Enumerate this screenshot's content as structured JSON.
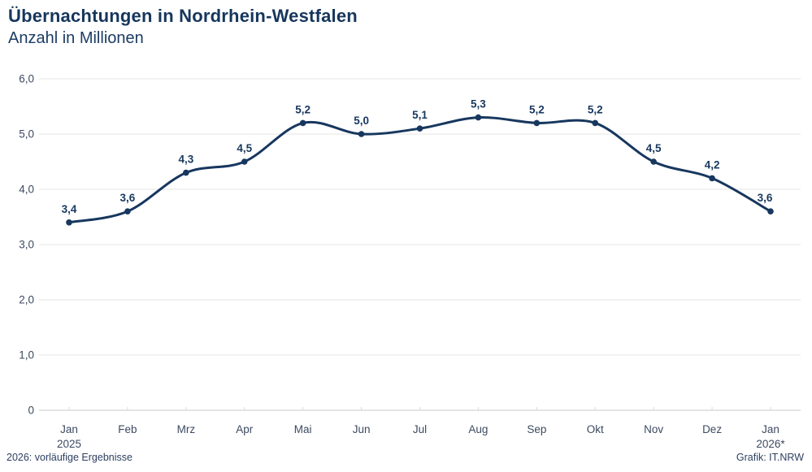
{
  "header": {
    "title": "Übernachtungen in Nordrhein-Westfalen",
    "subtitle": "Anzahl in Millionen"
  },
  "footer": {
    "note_left": "2026: vorläufige Ergebnisse",
    "credit_right": "Grafik: IT.NRW"
  },
  "colors": {
    "line": "#17375e",
    "point_label": "#17375e",
    "axis_label": "#3c4a61",
    "gridline": "#e9e9e9",
    "zero_line": "#d4d4d4",
    "tick_mark": "#d9d9d9"
  },
  "chart_data": {
    "type": "line",
    "title": "Übernachtungen in Nordrhein-Westfalen",
    "subtitle": "Anzahl in Millionen",
    "ylabel": "Anzahl in Millionen",
    "xlabel": "",
    "ylim": [
      0,
      6
    ],
    "grid": true,
    "legend": "none",
    "categories": [
      "Jan 2025",
      "Feb",
      "Mrz",
      "Apr",
      "Mai",
      "Jun",
      "Jul",
      "Aug",
      "Sep",
      "Okt",
      "Nov",
      "Dez",
      "Jan 2026*"
    ],
    "x_tick_lines": [
      [
        "Jan",
        "2025"
      ],
      [
        "Feb"
      ],
      [
        "Mrz"
      ],
      [
        "Apr"
      ],
      [
        "Mai"
      ],
      [
        "Jun"
      ],
      [
        "Jul"
      ],
      [
        "Aug"
      ],
      [
        "Sep"
      ],
      [
        "Okt"
      ],
      [
        "Nov"
      ],
      [
        "Dez"
      ],
      [
        "Jan",
        "2026*"
      ]
    ],
    "values": [
      3.4,
      3.6,
      4.3,
      4.5,
      5.2,
      5.0,
      5.1,
      5.3,
      5.2,
      5.2,
      4.5,
      4.2,
      3.6
    ],
    "value_labels": [
      "3,4",
      "3,6",
      "4,3",
      "4,5",
      "5,2",
      "5,0",
      "5,1",
      "5,3",
      "5,2",
      "5,2",
      "4,5",
      "4,2",
      "3,6"
    ],
    "y_ticks": [
      {
        "v": 0,
        "label": "0"
      },
      {
        "v": 1,
        "label": "1,0"
      },
      {
        "v": 2,
        "label": "2,0"
      },
      {
        "v": 3,
        "label": "3,0"
      },
      {
        "v": 4,
        "label": "4,0"
      },
      {
        "v": 5,
        "label": "5,0"
      },
      {
        "v": 6,
        "label": "6,0"
      }
    ]
  }
}
